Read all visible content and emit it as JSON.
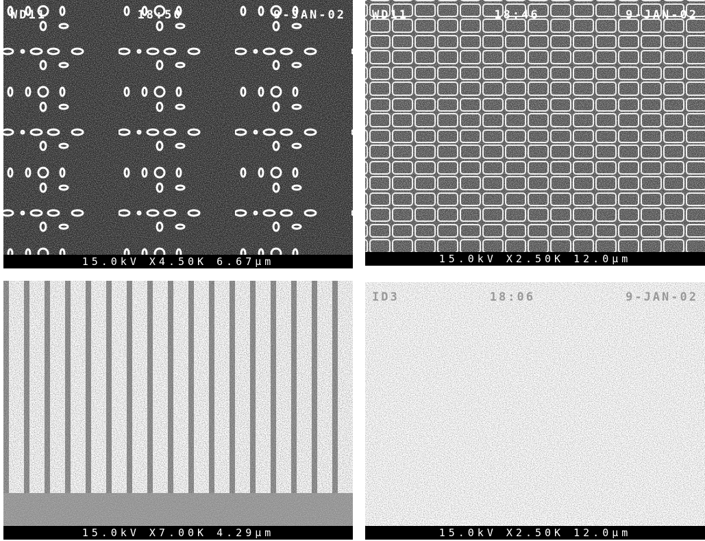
{
  "panels": [
    {
      "header": [
        "WD11",
        "18:50",
        "9-JAN-02"
      ],
      "footer": "15.0kV X4.50K 6.67μm"
    },
    {
      "header": [
        "WD11",
        "18:46",
        "9-JAN-02"
      ],
      "footer": "15.0kV X2.50K 12.0μm"
    },
    {
      "header": [],
      "footer": "15.0kV X7.00K 4.29μm"
    },
    {
      "header": [
        "ID3",
        "18:06",
        "9-JAN-02"
      ],
      "footer": "15.0kV X2.50K 12.0μm"
    }
  ]
}
